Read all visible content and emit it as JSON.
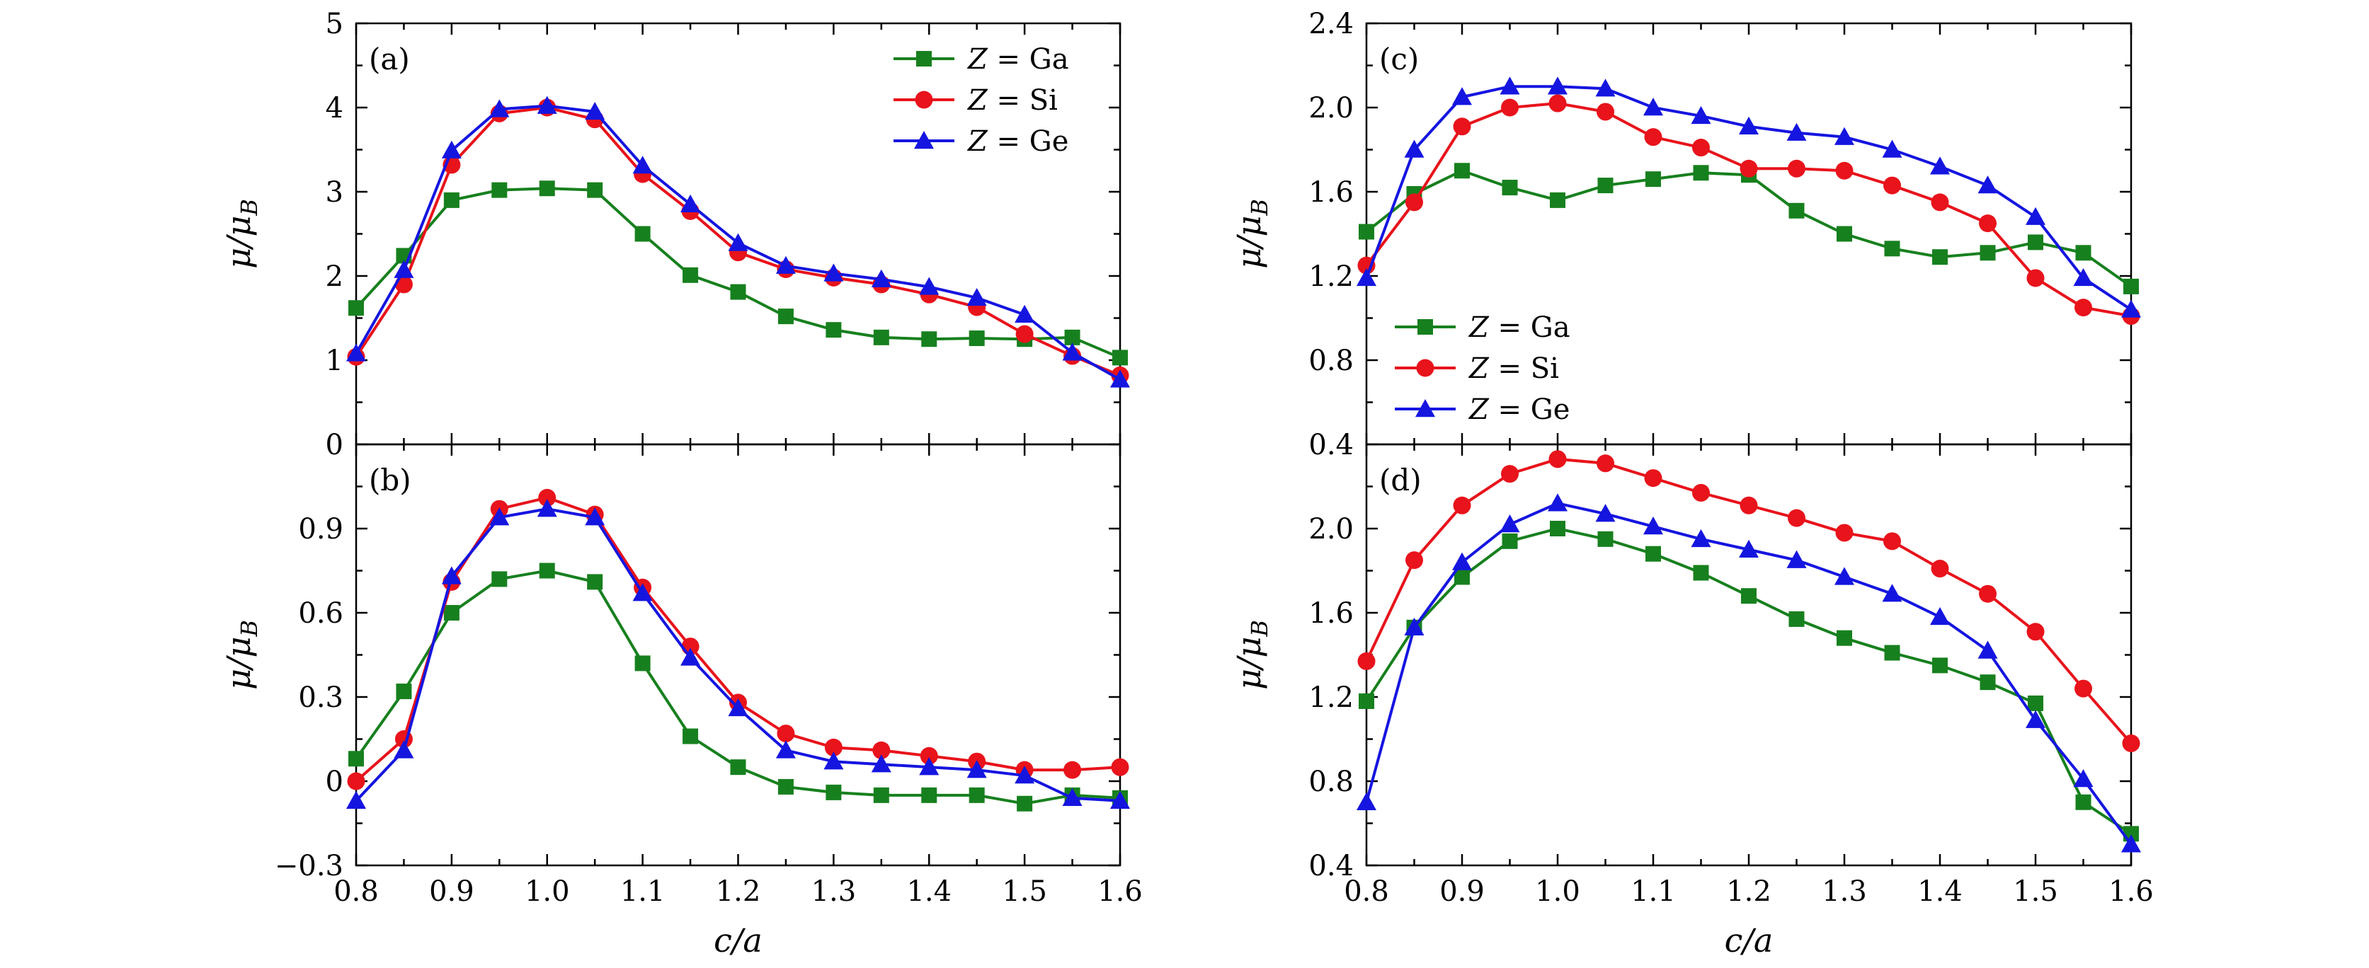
{
  "chart_data": {
    "type": "line",
    "x": [
      0.8,
      0.85,
      0.9,
      0.95,
      1.0,
      1.05,
      1.1,
      1.15,
      1.2,
      1.25,
      1.3,
      1.35,
      1.4,
      1.45,
      1.5,
      1.55,
      1.6
    ],
    "xlabel": "c/a",
    "ylabel": "μ/μ",
    "ylabel_sub": "B",
    "legend_prefix": "Z",
    "legend_eq": "=",
    "x_ticks": [
      "0.8",
      "0.9",
      "1.0",
      "1.1",
      "1.2",
      "1.3",
      "1.4",
      "1.5",
      "1.6"
    ],
    "series_colors": {
      "Ga": "#17801e",
      "Si": "#e8131b",
      "Ge": "#1515e0"
    },
    "series_markers": {
      "Ga": "square",
      "Si": "circle",
      "Ge": "triangle"
    },
    "panels": [
      {
        "id": "a",
        "label": "(a)",
        "xlim": [
          0.8,
          1.6
        ],
        "ylim": [
          0,
          5
        ],
        "y_ticks": [
          "0",
          "1",
          "2",
          "3",
          "4",
          "5"
        ],
        "y_tick_values": [
          0,
          1,
          2,
          3,
          4,
          5
        ],
        "show_x_ticklabels": false,
        "legend": true,
        "legend_position": "top-right",
        "series": [
          {
            "name": "Ga",
            "values": [
              1.62,
              2.24,
              2.9,
              3.02,
              3.04,
              3.02,
              2.5,
              2.01,
              1.81,
              1.52,
              1.36,
              1.27,
              1.25,
              1.26,
              1.25,
              1.27,
              1.03
            ]
          },
          {
            "name": "Si",
            "values": [
              1.04,
              1.9,
              3.32,
              3.93,
              4.0,
              3.86,
              3.21,
              2.77,
              2.28,
              2.08,
              1.98,
              1.9,
              1.78,
              1.63,
              1.31,
              1.05,
              0.82
            ]
          },
          {
            "name": "Ge",
            "values": [
              1.08,
              2.07,
              3.49,
              3.98,
              4.02,
              3.95,
              3.31,
              2.85,
              2.39,
              2.12,
              2.03,
              1.96,
              1.87,
              1.74,
              1.54,
              1.09,
              0.77
            ]
          }
        ]
      },
      {
        "id": "b",
        "label": "(b)",
        "xlim": [
          0.8,
          1.6
        ],
        "ylim": [
          -0.3,
          1.2
        ],
        "y_ticks": [
          "−0.3",
          "0",
          "0.3",
          "0.6",
          "0.9"
        ],
        "y_tick_values": [
          -0.3,
          0,
          0.3,
          0.6,
          0.9
        ],
        "show_x_ticklabels": true,
        "legend": false,
        "series": [
          {
            "name": "Ga",
            "values": [
              0.08,
              0.32,
              0.6,
              0.72,
              0.75,
              0.71,
              0.42,
              0.16,
              0.05,
              -0.02,
              -0.04,
              -0.05,
              -0.05,
              -0.05,
              -0.08,
              -0.05,
              -0.06
            ]
          },
          {
            "name": "Si",
            "values": [
              0.0,
              0.15,
              0.71,
              0.97,
              1.01,
              0.95,
              0.69,
              0.48,
              0.28,
              0.17,
              0.12,
              0.11,
              0.09,
              0.07,
              0.04,
              0.04,
              0.05
            ]
          },
          {
            "name": "Ge",
            "values": [
              -0.07,
              0.11,
              0.73,
              0.94,
              0.97,
              0.94,
              0.67,
              0.44,
              0.26,
              0.11,
              0.07,
              0.06,
              0.05,
              0.04,
              0.02,
              -0.06,
              -0.07
            ]
          }
        ]
      },
      {
        "id": "c",
        "label": "(c)",
        "xlim": [
          0.8,
          1.6
        ],
        "ylim": [
          0.4,
          2.4
        ],
        "y_ticks": [
          "0.4",
          "0.8",
          "1.2",
          "1.6",
          "2.0",
          "2.4"
        ],
        "y_tick_values": [
          0.4,
          0.8,
          1.2,
          1.6,
          2.0,
          2.4
        ],
        "show_x_ticklabels": false,
        "legend": true,
        "legend_position": "bottom-left",
        "series": [
          {
            "name": "Ga",
            "values": [
              1.41,
              1.59,
              1.7,
              1.62,
              1.56,
              1.63,
              1.66,
              1.69,
              1.68,
              1.51,
              1.4,
              1.33,
              1.29,
              1.31,
              1.36,
              1.31,
              1.15
            ]
          },
          {
            "name": "Si",
            "values": [
              1.25,
              1.55,
              1.91,
              2.0,
              2.02,
              1.98,
              1.86,
              1.81,
              1.71,
              1.71,
              1.7,
              1.63,
              1.55,
              1.45,
              1.19,
              1.05,
              1.01
            ]
          },
          {
            "name": "Ge",
            "values": [
              1.19,
              1.8,
              2.05,
              2.1,
              2.1,
              2.09,
              2.0,
              1.96,
              1.91,
              1.88,
              1.86,
              1.8,
              1.72,
              1.63,
              1.48,
              1.19,
              1.04
            ]
          }
        ]
      },
      {
        "id": "d",
        "label": "(d)",
        "xlim": [
          0.8,
          1.6
        ],
        "ylim": [
          0.4,
          2.4
        ],
        "y_ticks": [
          "0.4",
          "0.8",
          "1.2",
          "1.6",
          "2.0"
        ],
        "y_tick_values": [
          0.4,
          0.8,
          1.2,
          1.6,
          2.0
        ],
        "show_x_ticklabels": true,
        "legend": false,
        "series": [
          {
            "name": "Ga",
            "values": [
              1.18,
              1.53,
              1.77,
              1.94,
              2.0,
              1.95,
              1.88,
              1.79,
              1.68,
              1.57,
              1.48,
              1.41,
              1.35,
              1.27,
              1.17,
              0.7,
              0.55
            ]
          },
          {
            "name": "Si",
            "values": [
              1.37,
              1.85,
              2.11,
              2.26,
              2.33,
              2.31,
              2.24,
              2.17,
              2.11,
              2.05,
              1.98,
              1.94,
              1.81,
              1.69,
              1.51,
              1.24,
              0.98
            ]
          },
          {
            "name": "Ge",
            "values": [
              0.7,
              1.53,
              1.84,
              2.02,
              2.12,
              2.07,
              2.01,
              1.95,
              1.9,
              1.85,
              1.77,
              1.69,
              1.58,
              1.42,
              1.09,
              0.81,
              0.5
            ]
          }
        ]
      }
    ]
  }
}
